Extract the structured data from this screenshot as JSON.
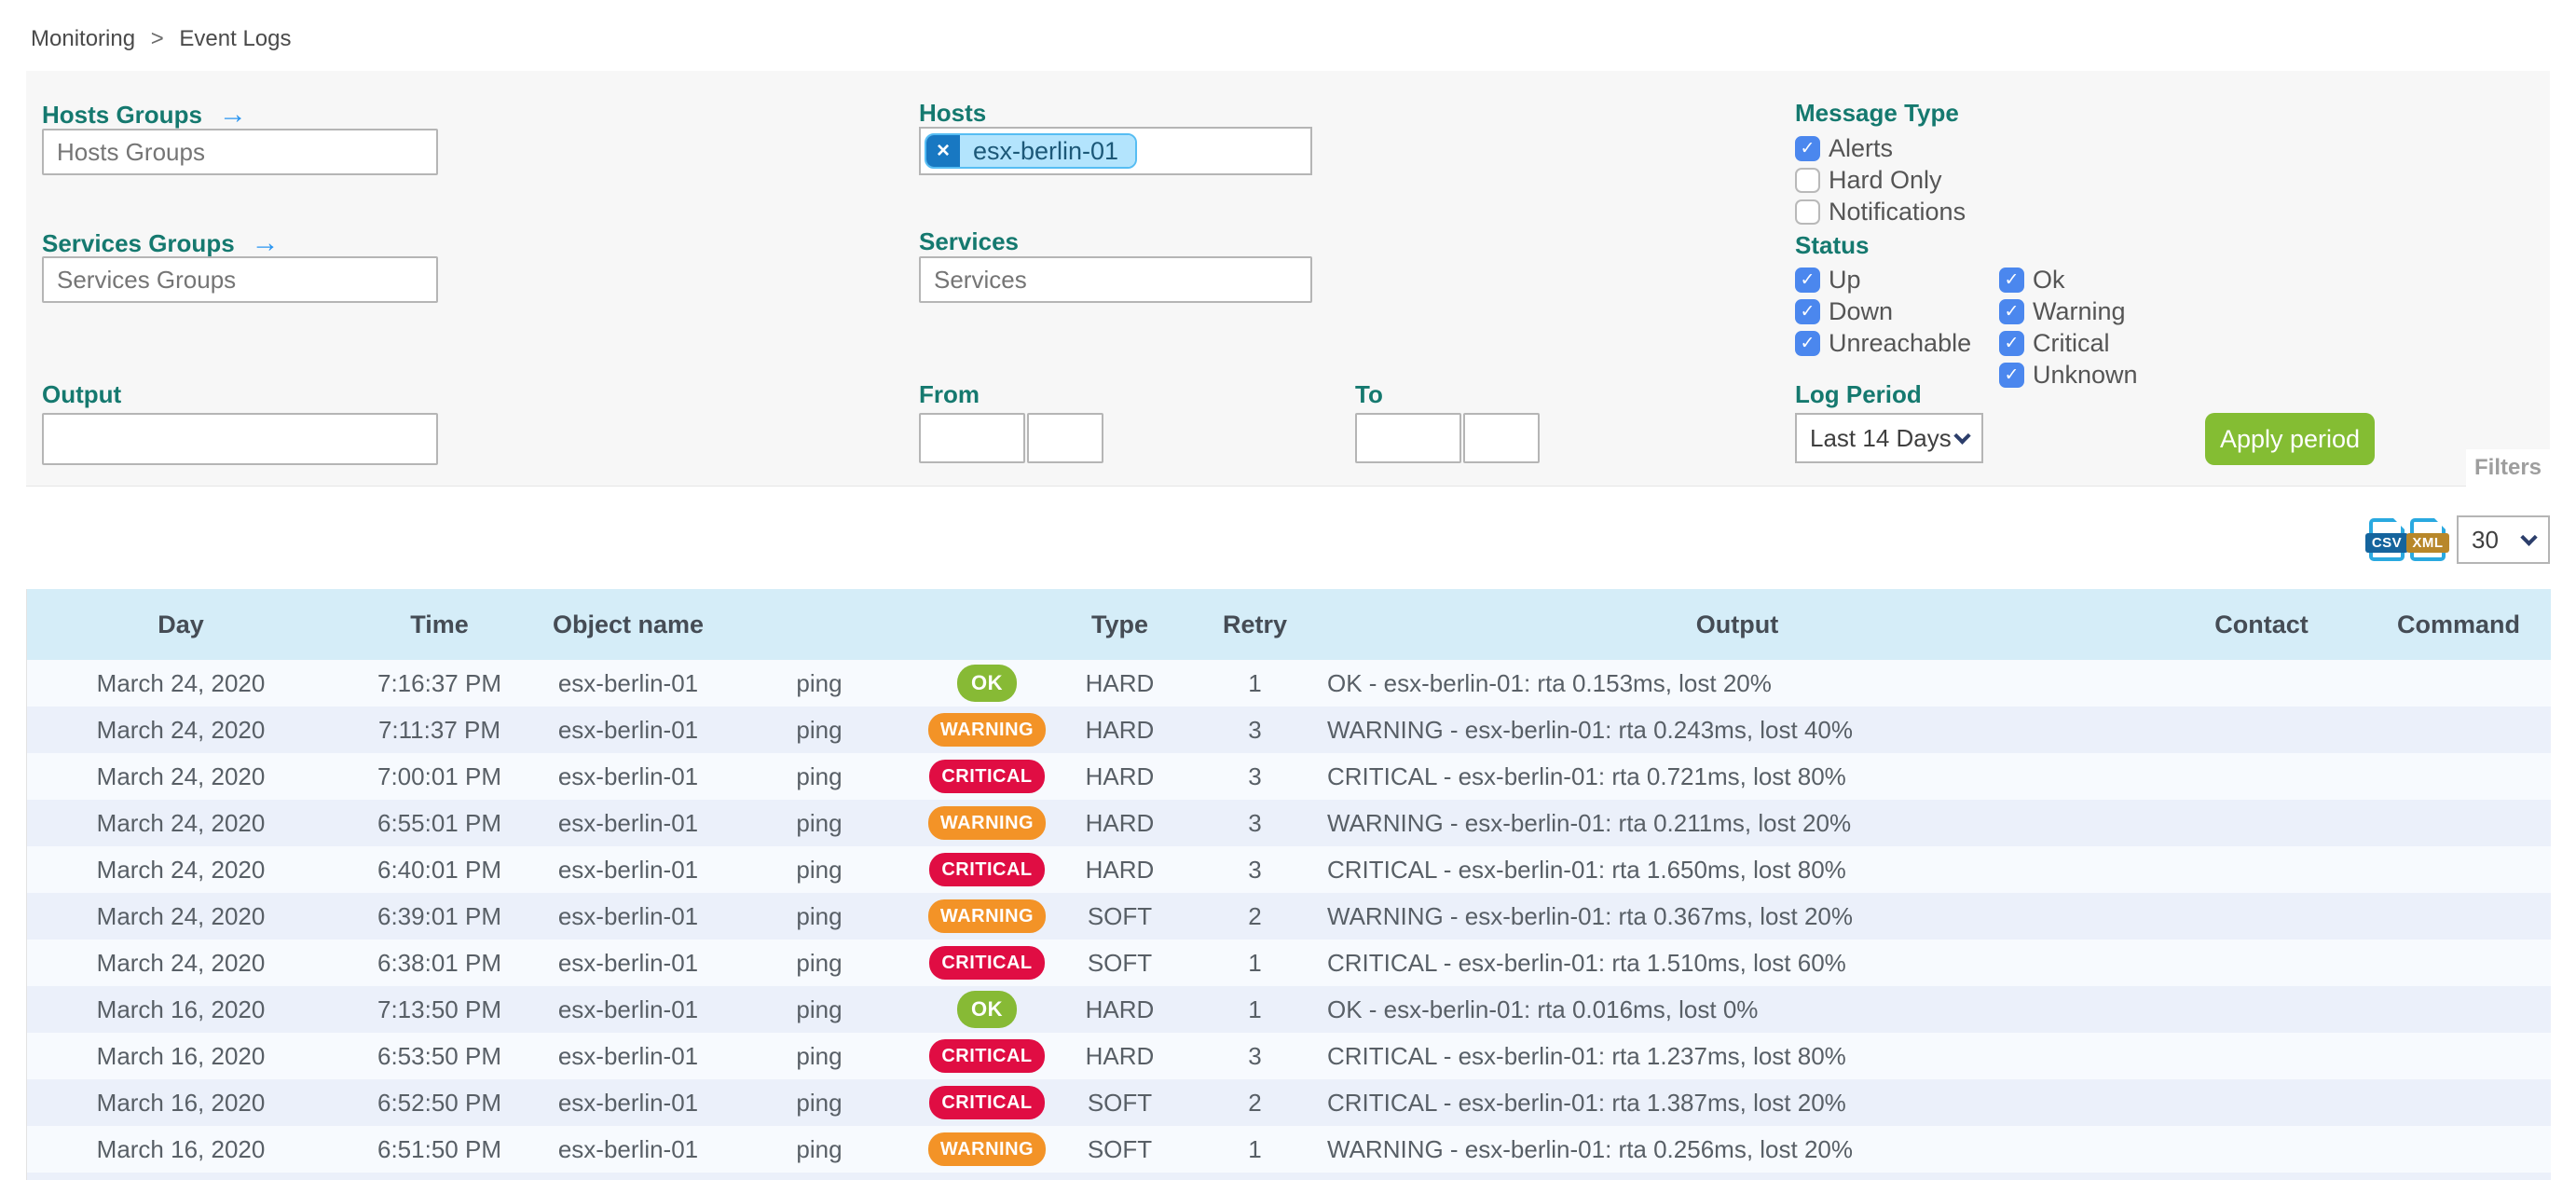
{
  "breadcrumb": {
    "items": [
      "Monitoring",
      "Event Logs"
    ],
    "separator": ">"
  },
  "filters": {
    "hosts_groups": {
      "label": "Hosts Groups",
      "placeholder": "Hosts Groups"
    },
    "services_groups": {
      "label": "Services Groups",
      "placeholder": "Services Groups"
    },
    "hosts": {
      "label": "Hosts",
      "chips": [
        "esx-berlin-01"
      ],
      "remove_icon": "×"
    },
    "services": {
      "label": "Services",
      "placeholder": "Services"
    },
    "output": {
      "label": "Output",
      "value": ""
    },
    "from": {
      "label": "From",
      "date_value": "",
      "time_value": ""
    },
    "to": {
      "label": "To",
      "date_value": "",
      "time_value": ""
    },
    "message_type": {
      "label": "Message Type",
      "options": [
        {
          "label": "Alerts",
          "checked": true
        },
        {
          "label": "Hard Only",
          "checked": false
        },
        {
          "label": "Notifications",
          "checked": false
        }
      ]
    },
    "status": {
      "label": "Status",
      "host_options": [
        {
          "label": "Up",
          "checked": true
        },
        {
          "label": "Down",
          "checked": true
        },
        {
          "label": "Unreachable",
          "checked": true
        }
      ],
      "service_options": [
        {
          "label": "Ok",
          "checked": true
        },
        {
          "label": "Warning",
          "checked": true
        },
        {
          "label": "Critical",
          "checked": true
        },
        {
          "label": "Unknown",
          "checked": true
        }
      ]
    },
    "log_period": {
      "label": "Log Period",
      "value": "Last 14 Days"
    },
    "apply_button": "Apply period",
    "filters_tab": "Filters"
  },
  "export": {
    "csv_label": "CSV",
    "xml_label": "XML",
    "page_size": "30"
  },
  "table": {
    "columns": [
      "Day",
      "Time",
      "Object name",
      "",
      "",
      "Type",
      "Retry",
      "Output",
      "Contact",
      "Command"
    ],
    "rows": [
      {
        "day": "March 24, 2020",
        "time": "7:16:37 PM",
        "object": "esx-berlin-01",
        "service": "ping",
        "status": "OK",
        "type": "HARD",
        "retry": "1",
        "output": "OK - esx-berlin-01: rta 0.153ms, lost 20%",
        "contact": "",
        "command": ""
      },
      {
        "day": "March 24, 2020",
        "time": "7:11:37 PM",
        "object": "esx-berlin-01",
        "service": "ping",
        "status": "WARNING",
        "type": "HARD",
        "retry": "3",
        "output": "WARNING - esx-berlin-01: rta 0.243ms, lost 40%",
        "contact": "",
        "command": ""
      },
      {
        "day": "March 24, 2020",
        "time": "7:00:01 PM",
        "object": "esx-berlin-01",
        "service": "ping",
        "status": "CRITICAL",
        "type": "HARD",
        "retry": "3",
        "output": "CRITICAL - esx-berlin-01: rta 0.721ms, lost 80%",
        "contact": "",
        "command": ""
      },
      {
        "day": "March 24, 2020",
        "time": "6:55:01 PM",
        "object": "esx-berlin-01",
        "service": "ping",
        "status": "WARNING",
        "type": "HARD",
        "retry": "3",
        "output": "WARNING - esx-berlin-01: rta 0.211ms, lost 20%",
        "contact": "",
        "command": ""
      },
      {
        "day": "March 24, 2020",
        "time": "6:40:01 PM",
        "object": "esx-berlin-01",
        "service": "ping",
        "status": "CRITICAL",
        "type": "HARD",
        "retry": "3",
        "output": "CRITICAL - esx-berlin-01: rta 1.650ms, lost 80%",
        "contact": "",
        "command": ""
      },
      {
        "day": "March 24, 2020",
        "time": "6:39:01 PM",
        "object": "esx-berlin-01",
        "service": "ping",
        "status": "WARNING",
        "type": "SOFT",
        "retry": "2",
        "output": "WARNING - esx-berlin-01: rta 0.367ms, lost 20%",
        "contact": "",
        "command": ""
      },
      {
        "day": "March 24, 2020",
        "time": "6:38:01 PM",
        "object": "esx-berlin-01",
        "service": "ping",
        "status": "CRITICAL",
        "type": "SOFT",
        "retry": "1",
        "output": "CRITICAL - esx-berlin-01: rta 1.510ms, lost 60%",
        "contact": "",
        "command": ""
      },
      {
        "day": "March 16, 2020",
        "time": "7:13:50 PM",
        "object": "esx-berlin-01",
        "service": "ping",
        "status": "OK",
        "type": "HARD",
        "retry": "1",
        "output": "OK - esx-berlin-01: rta 0.016ms, lost 0%",
        "contact": "",
        "command": ""
      },
      {
        "day": "March 16, 2020",
        "time": "6:53:50 PM",
        "object": "esx-berlin-01",
        "service": "ping",
        "status": "CRITICAL",
        "type": "HARD",
        "retry": "3",
        "output": "CRITICAL - esx-berlin-01: rta 1.237ms, lost 80%",
        "contact": "",
        "command": ""
      },
      {
        "day": "March 16, 2020",
        "time": "6:52:50 PM",
        "object": "esx-berlin-01",
        "service": "ping",
        "status": "CRITICAL",
        "type": "SOFT",
        "retry": "2",
        "output": "CRITICAL - esx-berlin-01: rta 1.387ms, lost 20%",
        "contact": "",
        "command": ""
      },
      {
        "day": "March 16, 2020",
        "time": "6:51:50 PM",
        "object": "esx-berlin-01",
        "service": "ping",
        "status": "WARNING",
        "type": "SOFT",
        "retry": "1",
        "output": "WARNING - esx-berlin-01: rta 0.256ms, lost 20%",
        "contact": "",
        "command": ""
      }
    ]
  },
  "colors": {
    "ok": "#87ba35",
    "warning": "#f39327",
    "critical": "#e00d43",
    "accent_teal": "#15796f",
    "checkbox_blue": "#4b87ee",
    "apply_green": "#84bd33",
    "link_blue": "#2b96f1",
    "header_blue": "#d5edf8"
  }
}
